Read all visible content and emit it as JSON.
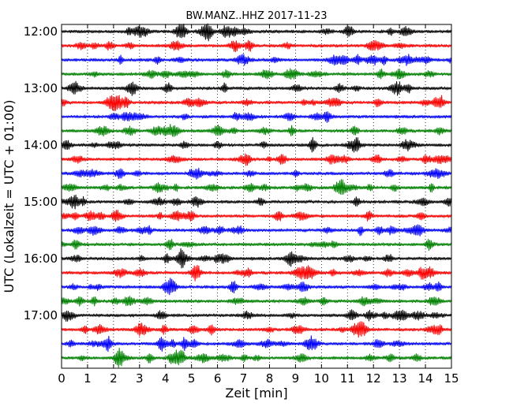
{
  "chart_data": {
    "type": "line",
    "title": "BW.MANZ..HHZ 2017-11-23",
    "xlabel": "Zeit  [min]",
    "ylabel": "UTC (Lokalzeit = UTC + 01:00)",
    "xlim": [
      0,
      15
    ],
    "x_ticks": [
      "0",
      "1",
      "2",
      "3",
      "4",
      "5",
      "6",
      "7",
      "8",
      "9",
      "10",
      "11",
      "12",
      "13",
      "14",
      "15"
    ],
    "y_ticks": [
      "12:00",
      "13:00",
      "14:00",
      "15:00",
      "16:00",
      "17:00"
    ],
    "grid": "vertical dotted",
    "line_minutes": 15,
    "start": "12:00",
    "end": "18:00",
    "series_colors": [
      "#000000",
      "#ff0000",
      "#0000ff",
      "#008000"
    ],
    "series": [
      {
        "start": "12:00",
        "color": "#000000"
      },
      {
        "start": "12:15",
        "color": "#ff0000"
      },
      {
        "start": "12:30",
        "color": "#0000ff"
      },
      {
        "start": "12:45",
        "color": "#008000"
      },
      {
        "start": "13:00",
        "color": "#000000"
      },
      {
        "start": "13:15",
        "color": "#ff0000"
      },
      {
        "start": "13:30",
        "color": "#0000ff"
      },
      {
        "start": "13:45",
        "color": "#008000"
      },
      {
        "start": "14:00",
        "color": "#000000"
      },
      {
        "start": "14:15",
        "color": "#ff0000"
      },
      {
        "start": "14:30",
        "color": "#0000ff"
      },
      {
        "start": "14:45",
        "color": "#008000"
      },
      {
        "start": "15:00",
        "color": "#000000"
      },
      {
        "start": "15:15",
        "color": "#ff0000"
      },
      {
        "start": "15:30",
        "color": "#0000ff"
      },
      {
        "start": "15:45",
        "color": "#008000"
      },
      {
        "start": "16:00",
        "color": "#000000"
      },
      {
        "start": "16:15",
        "color": "#ff0000"
      },
      {
        "start": "16:30",
        "color": "#0000ff"
      },
      {
        "start": "16:45",
        "color": "#008000"
      },
      {
        "start": "17:00",
        "color": "#000000"
      },
      {
        "start": "17:15",
        "color": "#ff0000"
      },
      {
        "start": "17:30",
        "color": "#0000ff"
      },
      {
        "start": "17:45",
        "color": "#008000"
      }
    ]
  }
}
